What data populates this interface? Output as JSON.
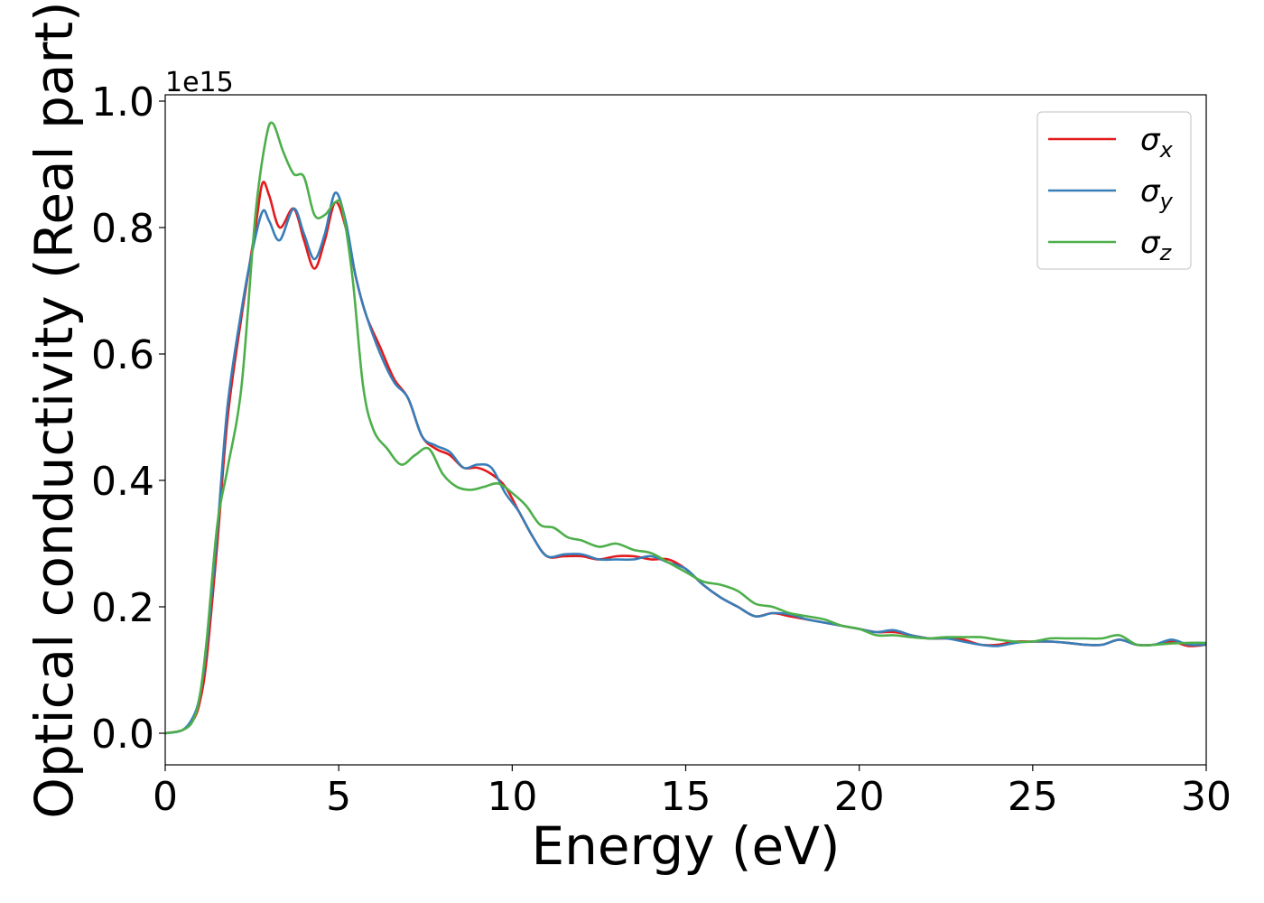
{
  "chart_data": {
    "type": "line",
    "xlabel": "Energy (eV)",
    "ylabel": "Optical conductivity (Real part)",
    "y_offset_label": "1e15",
    "xlim": [
      0,
      30
    ],
    "ylim": [
      -0.05,
      1.01
    ],
    "y_scale_factor": 1000000000000000.0,
    "grid": false,
    "legend_position": "top-right",
    "x_ticks": [
      0,
      5,
      10,
      15,
      20,
      25,
      30
    ],
    "x_tick_labels": [
      "0",
      "5",
      "10",
      "15",
      "20",
      "25",
      "30"
    ],
    "y_ticks": [
      0.0,
      0.2,
      0.4,
      0.6,
      0.8,
      1.0
    ],
    "y_tick_labels": [
      "0.0",
      "0.2",
      "0.4",
      "0.6",
      "0.8",
      "1.0"
    ],
    "series": [
      {
        "name": "σ",
        "subscript": "x",
        "color": "#e41a1c",
        "x": [
          0,
          0.5,
          0.8,
          1.0,
          1.2,
          1.5,
          1.8,
          2.2,
          2.6,
          2.8,
          3.0,
          3.3,
          3.7,
          4.0,
          4.3,
          4.6,
          4.9,
          5.2,
          5.5,
          5.8,
          6.2,
          6.6,
          7.0,
          7.4,
          7.8,
          8.2,
          8.6,
          9.0,
          9.4,
          9.8,
          10.2,
          10.6,
          11.0,
          11.5,
          12.0,
          12.5,
          13.0,
          13.5,
          14.0,
          14.5,
          15.0,
          15.5,
          16.0,
          16.5,
          17.0,
          17.5,
          18.0,
          18.5,
          19.0,
          19.5,
          20.0,
          20.5,
          21.0,
          21.5,
          22.0,
          22.5,
          23.0,
          23.5,
          24.0,
          24.5,
          25.0,
          25.5,
          26.0,
          26.5,
          27.0,
          27.5,
          28.0,
          28.5,
          29.0,
          29.5,
          30.0
        ],
        "y": [
          0.0,
          0.005,
          0.02,
          0.05,
          0.12,
          0.3,
          0.5,
          0.66,
          0.8,
          0.87,
          0.85,
          0.8,
          0.83,
          0.78,
          0.735,
          0.78,
          0.84,
          0.8,
          0.72,
          0.66,
          0.61,
          0.56,
          0.53,
          0.47,
          0.45,
          0.44,
          0.42,
          0.42,
          0.41,
          0.39,
          0.35,
          0.31,
          0.28,
          0.28,
          0.28,
          0.275,
          0.28,
          0.28,
          0.275,
          0.275,
          0.26,
          0.235,
          0.215,
          0.2,
          0.185,
          0.19,
          0.185,
          0.18,
          0.175,
          0.17,
          0.165,
          0.16,
          0.16,
          0.155,
          0.15,
          0.15,
          0.148,
          0.14,
          0.14,
          0.145,
          0.145,
          0.145,
          0.143,
          0.14,
          0.14,
          0.148,
          0.14,
          0.14,
          0.145,
          0.138,
          0.14
        ]
      },
      {
        "name": "σ",
        "subscript": "y",
        "color": "#377eb8",
        "x": [
          0,
          0.5,
          0.8,
          1.0,
          1.2,
          1.5,
          1.8,
          2.2,
          2.5,
          2.8,
          3.0,
          3.3,
          3.7,
          4.0,
          4.3,
          4.6,
          4.9,
          5.2,
          5.5,
          5.8,
          6.2,
          6.6,
          7.0,
          7.4,
          7.8,
          8.2,
          8.6,
          9.0,
          9.4,
          9.8,
          10.2,
          10.6,
          11.0,
          11.5,
          12.0,
          12.5,
          13.0,
          13.5,
          14.0,
          14.5,
          15.0,
          15.5,
          16.0,
          16.5,
          17.0,
          17.5,
          18.0,
          18.5,
          19.0,
          19.5,
          20.0,
          20.5,
          21.0,
          21.5,
          22.0,
          22.5,
          23.0,
          23.5,
          24.0,
          24.5,
          25.0,
          25.5,
          26.0,
          26.5,
          27.0,
          27.5,
          28.0,
          28.5,
          29.0,
          29.5,
          30.0
        ],
        "y": [
          0.0,
          0.005,
          0.025,
          0.06,
          0.14,
          0.32,
          0.52,
          0.67,
          0.76,
          0.825,
          0.81,
          0.78,
          0.83,
          0.79,
          0.75,
          0.79,
          0.855,
          0.81,
          0.72,
          0.66,
          0.6,
          0.555,
          0.53,
          0.47,
          0.455,
          0.445,
          0.42,
          0.425,
          0.42,
          0.38,
          0.35,
          0.31,
          0.28,
          0.283,
          0.283,
          0.275,
          0.275,
          0.275,
          0.28,
          0.27,
          0.26,
          0.235,
          0.215,
          0.2,
          0.185,
          0.19,
          0.188,
          0.18,
          0.175,
          0.17,
          0.165,
          0.16,
          0.163,
          0.155,
          0.15,
          0.15,
          0.145,
          0.14,
          0.138,
          0.143,
          0.145,
          0.145,
          0.143,
          0.14,
          0.14,
          0.148,
          0.14,
          0.14,
          0.148,
          0.14,
          0.14
        ]
      },
      {
        "name": "σ",
        "subscript": "z",
        "color": "#4daf4a",
        "x": [
          0,
          0.5,
          0.8,
          1.0,
          1.2,
          1.5,
          1.8,
          2.2,
          2.6,
          2.9,
          3.1,
          3.4,
          3.7,
          4.0,
          4.3,
          4.6,
          4.9,
          5.1,
          5.4,
          5.7,
          6.0,
          6.4,
          6.8,
          7.2,
          7.6,
          8.0,
          8.4,
          8.8,
          9.2,
          9.6,
          10.0,
          10.4,
          10.8,
          11.2,
          11.6,
          12.0,
          12.5,
          13.0,
          13.5,
          14.0,
          14.5,
          15.0,
          15.5,
          16.0,
          16.5,
          17.0,
          17.5,
          18.0,
          18.5,
          19.0,
          19.5,
          20.0,
          20.5,
          21.0,
          21.5,
          22.0,
          22.5,
          23.0,
          23.5,
          24.0,
          24.5,
          25.0,
          25.5,
          26.0,
          26.5,
          27.0,
          27.5,
          28.0,
          28.5,
          29.0,
          29.5,
          30.0
        ],
        "y": [
          0.0,
          0.005,
          0.02,
          0.06,
          0.15,
          0.33,
          0.42,
          0.55,
          0.82,
          0.94,
          0.965,
          0.92,
          0.885,
          0.88,
          0.82,
          0.82,
          0.84,
          0.83,
          0.72,
          0.55,
          0.48,
          0.45,
          0.425,
          0.44,
          0.45,
          0.41,
          0.39,
          0.385,
          0.39,
          0.395,
          0.38,
          0.36,
          0.33,
          0.325,
          0.31,
          0.305,
          0.295,
          0.3,
          0.29,
          0.285,
          0.27,
          0.255,
          0.24,
          0.235,
          0.225,
          0.205,
          0.2,
          0.19,
          0.185,
          0.18,
          0.17,
          0.165,
          0.155,
          0.155,
          0.152,
          0.15,
          0.152,
          0.152,
          0.152,
          0.148,
          0.145,
          0.145,
          0.15,
          0.15,
          0.15,
          0.15,
          0.155,
          0.14,
          0.14,
          0.142,
          0.143,
          0.143
        ]
      }
    ]
  }
}
